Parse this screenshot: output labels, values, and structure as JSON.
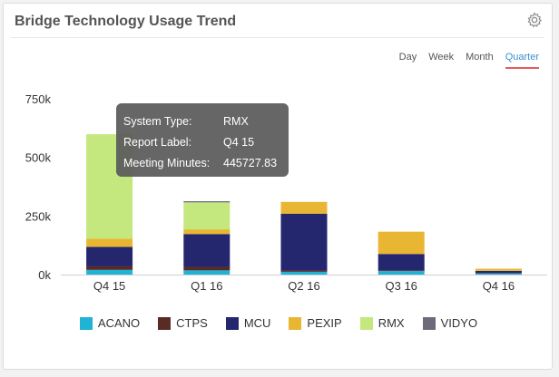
{
  "header": {
    "title": "Bridge Technology Usage Trend"
  },
  "tabs": [
    {
      "label": "Day",
      "active": false
    },
    {
      "label": "Week",
      "active": false
    },
    {
      "label": "Month",
      "active": false
    },
    {
      "label": "Quarter",
      "active": true
    }
  ],
  "tooltip": {
    "rows": [
      {
        "key": "System Type:",
        "value": "RMX"
      },
      {
        "key": "Report Label:",
        "value": "Q4 15"
      },
      {
        "key": "Meeting Minutes:",
        "value": "445727.83"
      }
    ]
  },
  "chart_data": {
    "type": "bar",
    "stacked": true,
    "categories": [
      "Q4 15",
      "Q1 16",
      "Q2 16",
      "Q3 16",
      "Q4 16"
    ],
    "yticks": [
      "0k",
      "250k",
      "500k",
      "750k"
    ],
    "ylim": [
      0,
      750000
    ],
    "grid": false,
    "legend_position": "bottom",
    "series": [
      {
        "name": "ACANO",
        "color": "#1fb3d6",
        "values": [
          20000,
          18000,
          12000,
          15000,
          5000
        ]
      },
      {
        "name": "CTPS",
        "color": "#5a2a25",
        "values": [
          15000,
          15000,
          5000,
          3000,
          1000
        ]
      },
      {
        "name": "MCU",
        "color": "#24266e",
        "values": [
          83000,
          140000,
          243000,
          70000,
          10000
        ]
      },
      {
        "name": "PEXIP",
        "color": "#e8b632",
        "values": [
          35000,
          20000,
          50000,
          95000,
          9000
        ]
      },
      {
        "name": "RMX",
        "color": "#c4e77e",
        "values": [
          445727.83,
          115000,
          0,
          0,
          0
        ]
      },
      {
        "name": "VIDYO",
        "color": "#6b6b7c",
        "values": [
          0,
          5000,
          0,
          0,
          0
        ]
      }
    ]
  }
}
